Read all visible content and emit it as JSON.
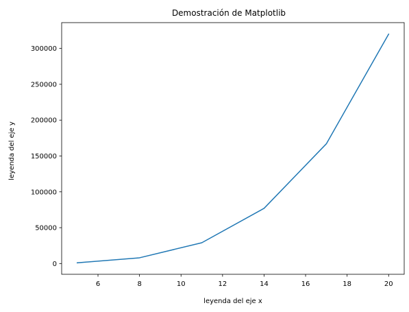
{
  "chart_data": {
    "type": "line",
    "title": "Demostración de Matplotlib",
    "xlabel": "leyenda del eje x",
    "ylabel": "leyenda del eje y",
    "xlim": [
      4.25,
      20.75
    ],
    "ylim": [
      -15000,
      336000
    ],
    "xticks": [
      6,
      8,
      10,
      12,
      14,
      16,
      18,
      20
    ],
    "yticks": [
      0,
      50000,
      100000,
      150000,
      200000,
      250000,
      300000
    ],
    "grid": false,
    "series": [
      {
        "color": "#1f77b4",
        "x": [
          5,
          8,
          11,
          14,
          17,
          20
        ],
        "y": [
          1000,
          8000,
          29000,
          77000,
          167000,
          320000
        ]
      }
    ]
  }
}
